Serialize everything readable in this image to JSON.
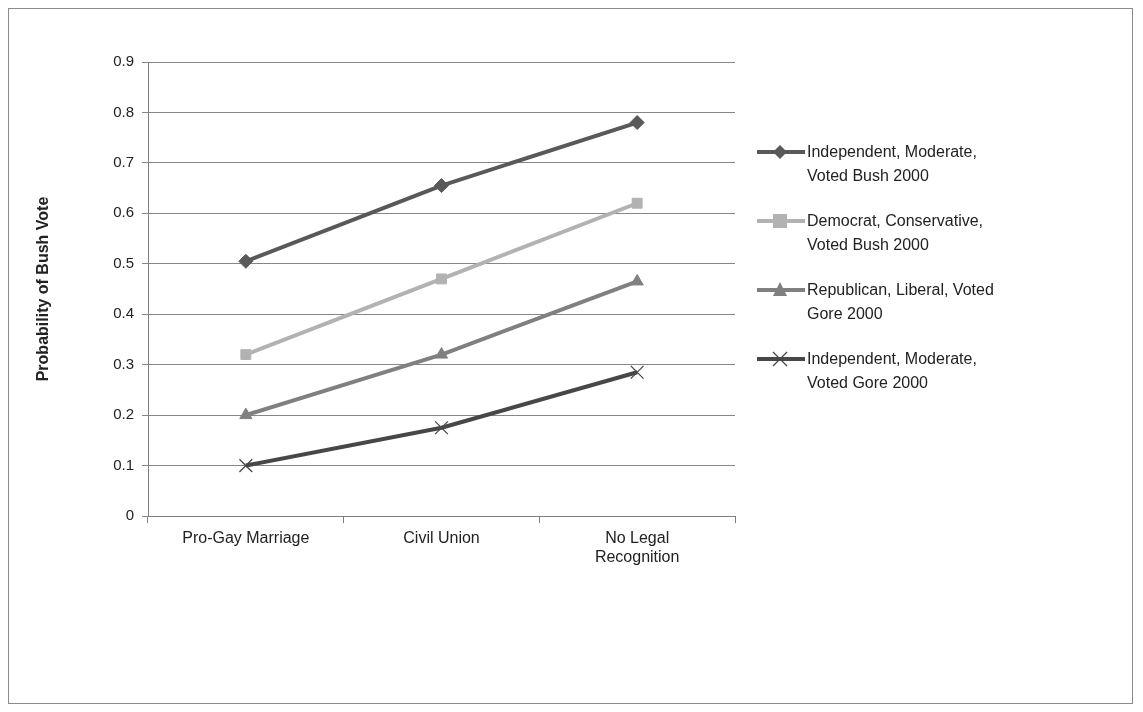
{
  "chart_data": {
    "type": "line",
    "ylabel": "Probability of Bush Vote",
    "categories": [
      "Pro-Gay Marriage",
      "Civil Union",
      "No Legal Recognition"
    ],
    "series": [
      {
        "name": "Independent, Moderate, Voted Bush 2000",
        "color": "#595959",
        "marker": "diamond",
        "values": [
          0.505,
          0.655,
          0.78
        ]
      },
      {
        "name": "Democrat, Conservative, Voted Bush 2000",
        "color": "#b2b2b2",
        "marker": "square",
        "values": [
          0.32,
          0.47,
          0.62
        ]
      },
      {
        "name": "Republican, Liberal, Voted Gore 2000",
        "color": "#808080",
        "marker": "triangle",
        "values": [
          0.2,
          0.32,
          0.465
        ]
      },
      {
        "name": "Independent, Moderate, Voted Gore 2000",
        "color": "#474747",
        "marker": "cross",
        "values": [
          0.1,
          0.175,
          0.285
        ]
      }
    ],
    "ylim": [
      0,
      0.9
    ],
    "yticks": [
      0,
      0.1,
      0.2,
      0.3,
      0.4,
      0.5,
      0.6,
      0.7,
      0.8,
      0.9
    ],
    "grid": "y",
    "legend": "right",
    "line_style": "solid"
  }
}
